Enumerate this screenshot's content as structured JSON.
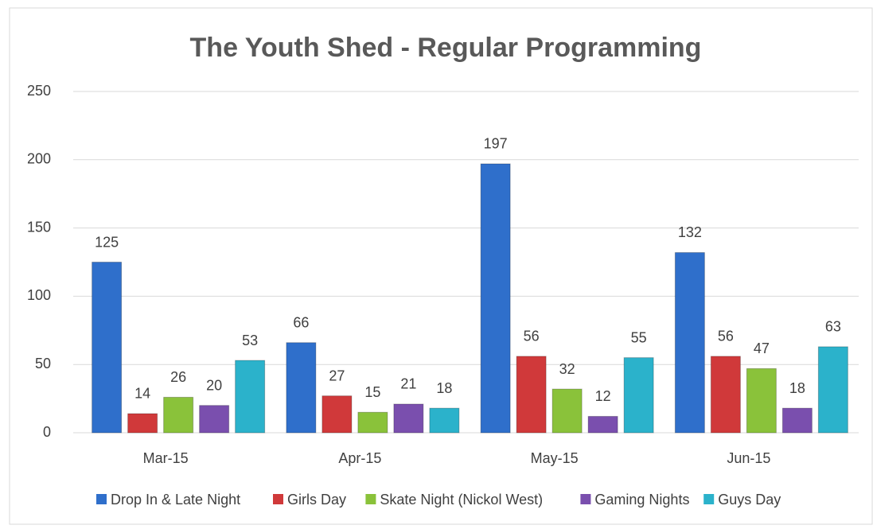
{
  "chart_data": {
    "type": "bar",
    "title": "The Youth Shed - Regular Programming",
    "categories": [
      "Mar-15",
      "Apr-15",
      "May-15",
      "Jun-15"
    ],
    "series": [
      {
        "name": "Drop In & Late Night",
        "color": "#2f6fcb",
        "values": [
          125,
          66,
          197,
          132
        ]
      },
      {
        "name": "Girls Day",
        "color": "#d0393a",
        "values": [
          14,
          27,
          56,
          56
        ]
      },
      {
        "name": "Skate Night (Nickol West)",
        "color": "#8ac23a",
        "values": [
          26,
          15,
          32,
          47
        ]
      },
      {
        "name": "Gaming Nights",
        "color": "#7a4fae",
        "values": [
          20,
          21,
          12,
          18
        ]
      },
      {
        "name": "Guys Day",
        "color": "#2bb2cb",
        "values": [
          53,
          18,
          55,
          63
        ]
      }
    ],
    "ylim": [
      0,
      250
    ],
    "yticks": [
      0,
      50,
      100,
      150,
      200,
      250
    ],
    "grid": true,
    "legend": "bottom"
  }
}
